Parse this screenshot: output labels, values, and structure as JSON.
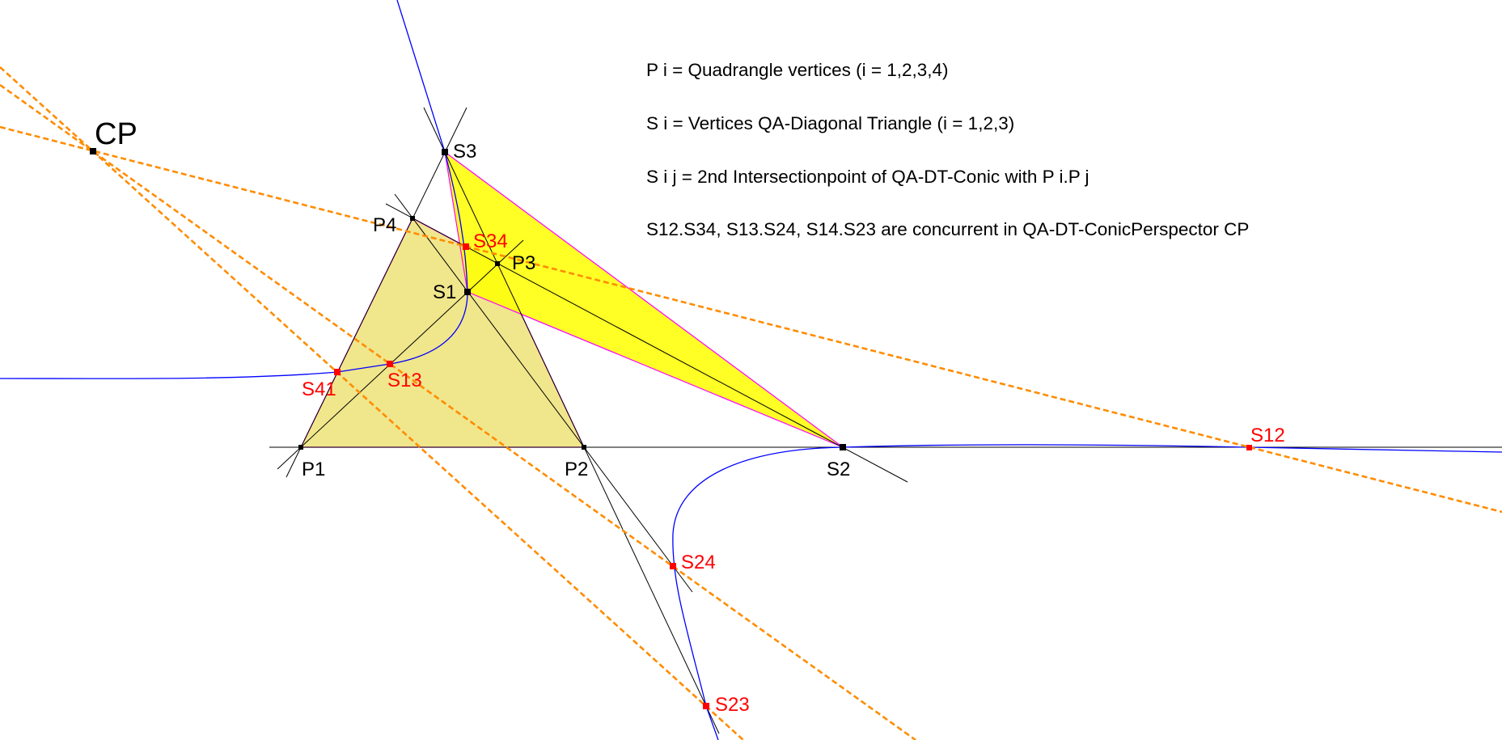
{
  "colors": {
    "quadrangle_fill": "#f0e68c",
    "triangle_fill": "#ffff00",
    "edge": "#ff00ff",
    "conic": "#0000ff",
    "perspective_lines": "#ff8c00",
    "points_black": "#000000",
    "points_red": "#ff0000"
  },
  "notes": [
    "P i = Quadrangle vertices (i = 1,2,3,4)",
    "S i = Vertices QA-Diagonal Triangle (i = 1,2,3)",
    "S i j = 2nd Intersectionpoint of QA-DT-Conic with P i.P j",
    "S12.S34, S13.S24, S14.S23 are concurrent in QA-DT-ConicPerspector CP"
  ],
  "labels": {
    "CP": "CP",
    "P1": "P1",
    "P2": "P2",
    "P3": "P3",
    "P4": "P4",
    "S1": "S1",
    "S2": "S2",
    "S3": "S3",
    "S12": "S12",
    "S13": "S13",
    "S23": "S23",
    "S24": "S24",
    "S34": "S34",
    "S41": "S41"
  }
}
